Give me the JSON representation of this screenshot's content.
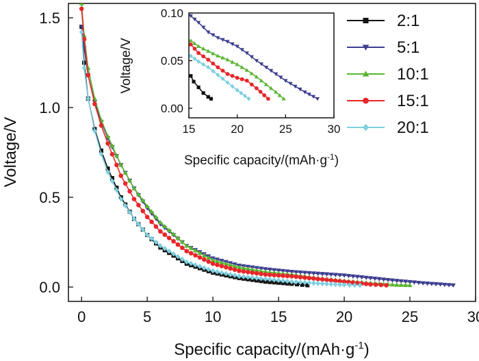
{
  "chart_data": {
    "type": "scatter",
    "xlabel": "Specific capacity/(mAh·g",
    "xlabel_sup": "-1",
    "xlabel_close": ")",
    "ylabel": "Voltage/V",
    "xlim": [
      -1,
      30
    ],
    "ylim": [
      -0.08,
      1.58
    ],
    "xticks": [
      "0",
      "5",
      "10",
      "15",
      "20",
      "25",
      "30"
    ],
    "xtick_values": [
      0,
      5,
      10,
      15,
      20,
      25,
      30
    ],
    "yticks": [
      "0.0",
      "0.5",
      "1.0",
      "1.5"
    ],
    "ytick_values": [
      0,
      0.5,
      1.0,
      1.5
    ],
    "legend_position": "top-right",
    "series": [
      {
        "name": "2:1",
        "color": "#111111",
        "marker": "square",
        "x_end": 17.2,
        "x": [
          0.0,
          0.2,
          0.5,
          1.0,
          1.5,
          2.0,
          3.0,
          4.0,
          5.0,
          6.0,
          8.0,
          10.0,
          12.0,
          14.0,
          16.0,
          17.2
        ],
        "y": [
          1.45,
          1.25,
          1.05,
          0.88,
          0.76,
          0.66,
          0.5,
          0.38,
          0.29,
          0.22,
          0.13,
          0.08,
          0.05,
          0.03,
          0.018,
          0.01
        ]
      },
      {
        "name": "5:1",
        "color": "#3c3d8f",
        "marker": "triangle-down",
        "x_end": 28.3,
        "x": [
          0.0,
          0.2,
          0.5,
          1.0,
          1.5,
          2.0,
          3.0,
          4.0,
          5.0,
          6.0,
          8.0,
          10.0,
          12.0,
          14.0,
          16.0,
          18.0,
          20.0,
          22.0,
          24.0,
          26.0,
          28.3
        ],
        "y": [
          1.45,
          1.33,
          1.18,
          1.03,
          0.92,
          0.83,
          0.68,
          0.55,
          0.44,
          0.35,
          0.23,
          0.16,
          0.12,
          0.1,
          0.085,
          0.075,
          0.065,
          0.05,
          0.035,
          0.022,
          0.01
        ]
      },
      {
        "name": "10:1",
        "color": "#5ab531",
        "marker": "triangle-up",
        "x_end": 25.0,
        "x": [
          0.0,
          0.2,
          0.5,
          1.0,
          1.5,
          2.0,
          3.0,
          4.0,
          5.0,
          6.0,
          8.0,
          10.0,
          12.0,
          14.0,
          16.0,
          18.0,
          20.0,
          22.0,
          24.0,
          25.0
        ],
        "y": [
          1.58,
          1.4,
          1.22,
          1.05,
          0.93,
          0.84,
          0.68,
          0.55,
          0.45,
          0.36,
          0.23,
          0.15,
          0.11,
          0.085,
          0.07,
          0.05,
          0.035,
          0.022,
          0.012,
          0.01
        ]
      },
      {
        "name": "15:1",
        "color": "#e8262a",
        "marker": "circle",
        "x_end": 23.2,
        "x": [
          0.0,
          0.2,
          0.5,
          1.0,
          1.5,
          2.0,
          3.0,
          4.0,
          5.0,
          6.0,
          8.0,
          10.0,
          12.0,
          14.0,
          16.0,
          18.0,
          20.0,
          22.0,
          23.2
        ],
        "y": [
          1.55,
          1.38,
          1.18,
          1.02,
          0.9,
          0.8,
          0.62,
          0.49,
          0.39,
          0.31,
          0.2,
          0.13,
          0.09,
          0.07,
          0.06,
          0.045,
          0.03,
          0.015,
          0.01
        ]
      },
      {
        "name": "20:1",
        "color": "#7ecfe0",
        "marker": "diamond",
        "x_end": 21.2,
        "x": [
          0.0,
          0.2,
          0.5,
          1.0,
          1.5,
          2.0,
          3.0,
          4.0,
          5.0,
          6.0,
          8.0,
          10.0,
          12.0,
          14.0,
          16.0,
          18.0,
          20.0,
          21.2
        ],
        "y": [
          1.42,
          1.22,
          1.05,
          0.87,
          0.74,
          0.64,
          0.49,
          0.38,
          0.29,
          0.23,
          0.14,
          0.09,
          0.06,
          0.045,
          0.03,
          0.02,
          0.012,
          0.01
        ]
      }
    ],
    "inset": {
      "type": "scatter",
      "xlabel": "Specific capacity/(mAh·g",
      "xlabel_sup": "-1",
      "xlabel_close": ")",
      "ylabel": "Voltage/V",
      "xlim": [
        15,
        30
      ],
      "ylim": [
        -0.01,
        0.1
      ],
      "xticks": [
        "15",
        "20",
        "25",
        "30"
      ],
      "xtick_values": [
        15,
        20,
        25,
        30
      ],
      "yticks": [
        "0.00",
        "0.05",
        "0.10"
      ],
      "ytick_values": [
        0,
        0.05,
        0.1
      ],
      "series": [
        {
          "name": "2:1",
          "x": [
            15.2,
            15.5,
            16.0,
            16.5,
            17.0,
            17.3
          ],
          "y": [
            0.034,
            0.028,
            0.022,
            0.016,
            0.012,
            0.01
          ]
        },
        {
          "name": "5:1",
          "x": [
            15.2,
            16.0,
            17.0,
            18.0,
            19.0,
            20.0,
            21.0,
            22.0,
            23.0,
            24.0,
            25.0,
            26.0,
            27.0,
            28.3
          ],
          "y": [
            0.097,
            0.09,
            0.08,
            0.074,
            0.07,
            0.065,
            0.058,
            0.05,
            0.043,
            0.036,
            0.029,
            0.023,
            0.017,
            0.01
          ]
        },
        {
          "name": "10:1",
          "x": [
            15.2,
            16.0,
            17.0,
            18.0,
            19.0,
            20.0,
            21.0,
            22.0,
            23.0,
            24.0,
            24.8
          ],
          "y": [
            0.071,
            0.065,
            0.06,
            0.055,
            0.051,
            0.046,
            0.04,
            0.033,
            0.025,
            0.017,
            0.01
          ]
        },
        {
          "name": "15:1",
          "x": [
            15.2,
            16.0,
            17.0,
            18.0,
            19.0,
            20.0,
            21.0,
            22.0,
            23.2
          ],
          "y": [
            0.067,
            0.058,
            0.051,
            0.043,
            0.036,
            0.032,
            0.029,
            0.021,
            0.01
          ]
        },
        {
          "name": "20:1",
          "x": [
            15.2,
            16.0,
            17.0,
            18.0,
            19.0,
            20.0,
            21.2
          ],
          "y": [
            0.055,
            0.049,
            0.043,
            0.035,
            0.027,
            0.019,
            0.01
          ]
        }
      ]
    }
  }
}
